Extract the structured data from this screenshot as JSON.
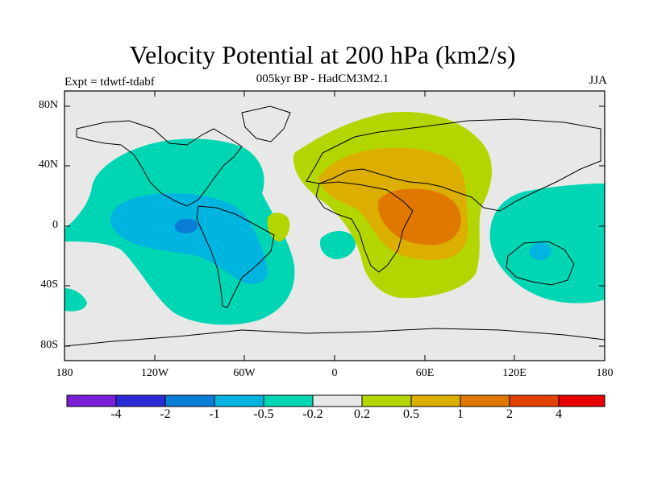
{
  "title": "Velocity Potential at 200 hPa (km2/s)",
  "subtitle": "005kyr BP - HadCM3M2.1",
  "left_label": "Expt = tdwtf-tdabf",
  "right_label": "JJA",
  "lat_labels": [
    "80N",
    "40N",
    "0",
    "40S",
    "80S"
  ],
  "lon_labels": [
    "180",
    "120W",
    "60W",
    "0",
    "60E",
    "120E",
    "180"
  ],
  "colorbar": {
    "colors": [
      "#7a1fd8",
      "#2a2bd6",
      "#0a7ed6",
      "#00b4e0",
      "#00d6b4",
      "#e8e8e8",
      "#b4d600",
      "#dcae00",
      "#e07800",
      "#e04000",
      "#e80000"
    ],
    "labels": [
      "-4",
      "-2",
      "-1",
      "-0.5",
      "-0.2",
      "0.2",
      "0.5",
      "1",
      "2",
      "4"
    ]
  }
}
